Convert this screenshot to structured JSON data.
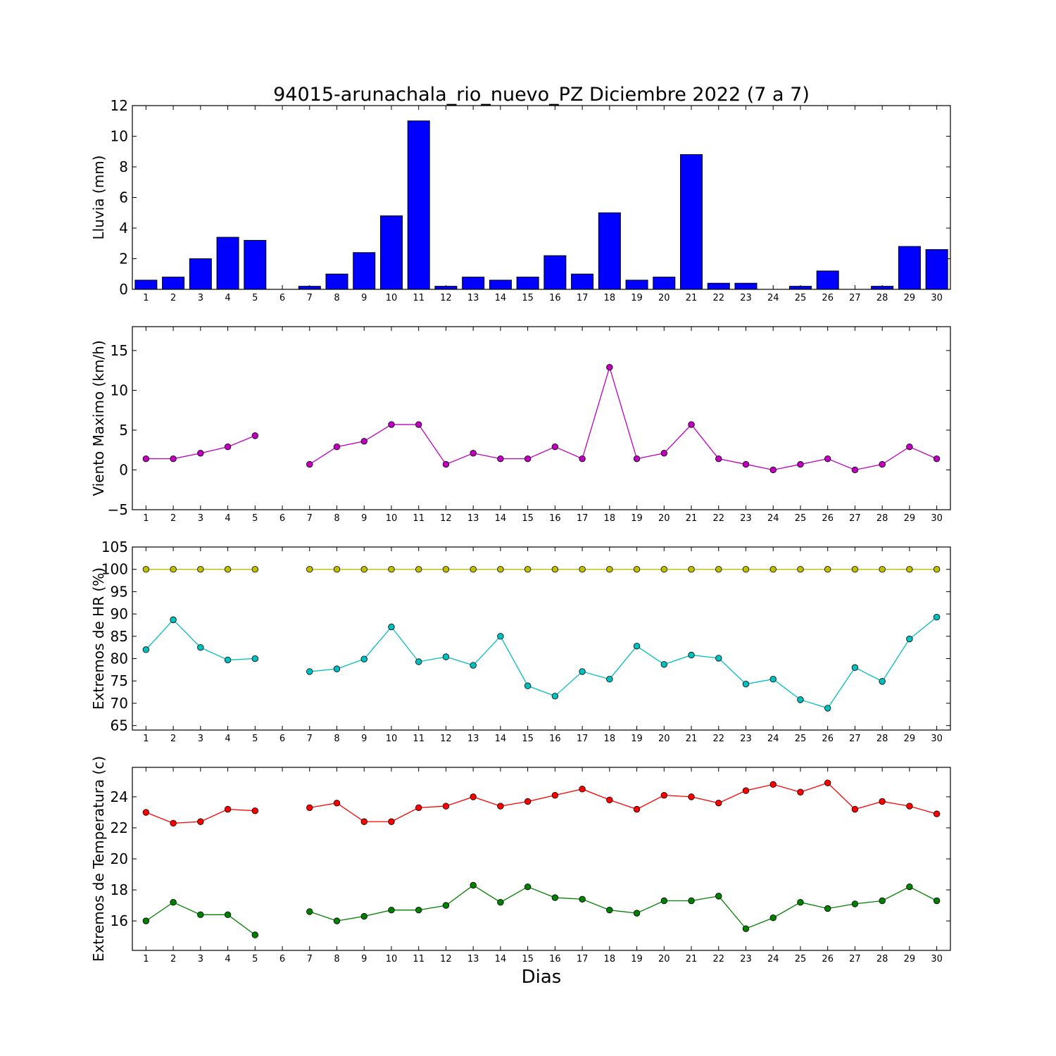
{
  "figure": {
    "title": "94015-arunachala_rio_nuevo_PZ Diciembre 2022  (7 a 7)",
    "xlabel": "Dias"
  },
  "chart_data": [
    {
      "type": "bar",
      "ylabel": "Lluvia (mm)",
      "ylim": [
        0,
        12
      ],
      "yticks": [
        0,
        2,
        4,
        6,
        8,
        10,
        12
      ],
      "xlim": [
        0.5,
        30.5
      ],
      "categories": [
        1,
        2,
        3,
        4,
        5,
        6,
        7,
        8,
        9,
        10,
        11,
        12,
        13,
        14,
        15,
        16,
        17,
        18,
        19,
        20,
        21,
        22,
        23,
        24,
        25,
        26,
        27,
        28,
        29,
        30
      ],
      "series": [
        {
          "color": "#0000ff",
          "values": [
            0.6,
            0.8,
            2.0,
            3.4,
            3.2,
            0,
            0.2,
            1.0,
            2.4,
            4.8,
            11.0,
            0.2,
            0.8,
            0.6,
            0.8,
            2.2,
            1.0,
            5.0,
            0.6,
            0.8,
            8.8,
            0.4,
            0.4,
            0,
            0.2,
            1.2,
            0,
            0.2,
            2.8,
            2.6
          ]
        }
      ]
    },
    {
      "type": "line",
      "ylabel": "Viento Maximo (km/h)",
      "ylim": [
        -5,
        18
      ],
      "yticks": [
        -5,
        0,
        5,
        10,
        15
      ],
      "ytick_labels": [
        "−5",
        "0",
        "5",
        "10",
        "15"
      ],
      "xlim": [
        0.5,
        30.5
      ],
      "x": [
        1,
        2,
        3,
        4,
        5,
        6,
        7,
        8,
        9,
        10,
        11,
        12,
        13,
        14,
        15,
        16,
        17,
        18,
        19,
        20,
        21,
        22,
        23,
        24,
        25,
        26,
        27,
        28,
        29,
        30
      ],
      "series": [
        {
          "color": "#bf00bf",
          "values": [
            1.4,
            1.4,
            2.1,
            2.9,
            4.3,
            null,
            0.7,
            2.9,
            3.6,
            5.7,
            5.7,
            0.7,
            2.1,
            1.4,
            1.4,
            2.9,
            1.4,
            12.9,
            1.4,
            2.1,
            5.7,
            1.4,
            0.7,
            0,
            0.7,
            1.4,
            0,
            0.7,
            2.9,
            1.4
          ]
        }
      ]
    },
    {
      "type": "line",
      "ylabel": "Extremos de HR (%)",
      "ylim": [
        64,
        105
      ],
      "yticks": [
        65,
        70,
        75,
        80,
        85,
        90,
        95,
        100,
        105
      ],
      "xlim": [
        0.5,
        30.5
      ],
      "x": [
        1,
        2,
        3,
        4,
        5,
        6,
        7,
        8,
        9,
        10,
        11,
        12,
        13,
        14,
        15,
        16,
        17,
        18,
        19,
        20,
        21,
        22,
        23,
        24,
        25,
        26,
        27,
        28,
        29,
        30
      ],
      "series": [
        {
          "color": "#bfbf00",
          "values": [
            100,
            100,
            100,
            100,
            100,
            null,
            100,
            100,
            100,
            100,
            100,
            100,
            100,
            100,
            100,
            100,
            100,
            100,
            100,
            100,
            100,
            100,
            100,
            100,
            100,
            100,
            100,
            100,
            100,
            100
          ]
        },
        {
          "color": "#00bfbf",
          "values": [
            82,
            88.7,
            82.5,
            79.7,
            80,
            null,
            77.1,
            77.7,
            79.9,
            87.1,
            79.3,
            80.4,
            78.5,
            85,
            73.9,
            71.6,
            77.1,
            75.4,
            82.8,
            78.7,
            80.8,
            80.1,
            74.3,
            75.4,
            70.8,
            68.9,
            78,
            74.9,
            84.4,
            89.3
          ]
        }
      ]
    },
    {
      "type": "line",
      "ylabel": "Extremos de Temperatura (c)",
      "ylim": [
        14.1,
        25.9
      ],
      "yticks": [
        16,
        18,
        20,
        22,
        24
      ],
      "xlim": [
        0.5,
        30.5
      ],
      "x": [
        1,
        2,
        3,
        4,
        5,
        6,
        7,
        8,
        9,
        10,
        11,
        12,
        13,
        14,
        15,
        16,
        17,
        18,
        19,
        20,
        21,
        22,
        23,
        24,
        25,
        26,
        27,
        28,
        29,
        30
      ],
      "series": [
        {
          "color": "#ff0000",
          "values": [
            23.0,
            22.3,
            22.4,
            23.2,
            23.1,
            null,
            23.3,
            23.6,
            22.4,
            22.4,
            23.3,
            23.4,
            24.0,
            23.4,
            23.7,
            24.1,
            24.5,
            23.8,
            23.2,
            24.1,
            24.0,
            23.6,
            24.4,
            24.8,
            24.3,
            24.9,
            23.2,
            23.7,
            23.4,
            22.9
          ]
        },
        {
          "color": "#008000",
          "values": [
            16.0,
            17.2,
            16.4,
            16.4,
            15.1,
            null,
            16.6,
            16.0,
            16.3,
            16.7,
            16.7,
            17.0,
            18.3,
            17.2,
            18.2,
            17.5,
            17.4,
            16.7,
            16.5,
            17.3,
            17.3,
            17.6,
            15.5,
            16.2,
            17.2,
            16.8,
            17.1,
            17.3,
            18.2,
            17.3
          ]
        }
      ]
    }
  ]
}
